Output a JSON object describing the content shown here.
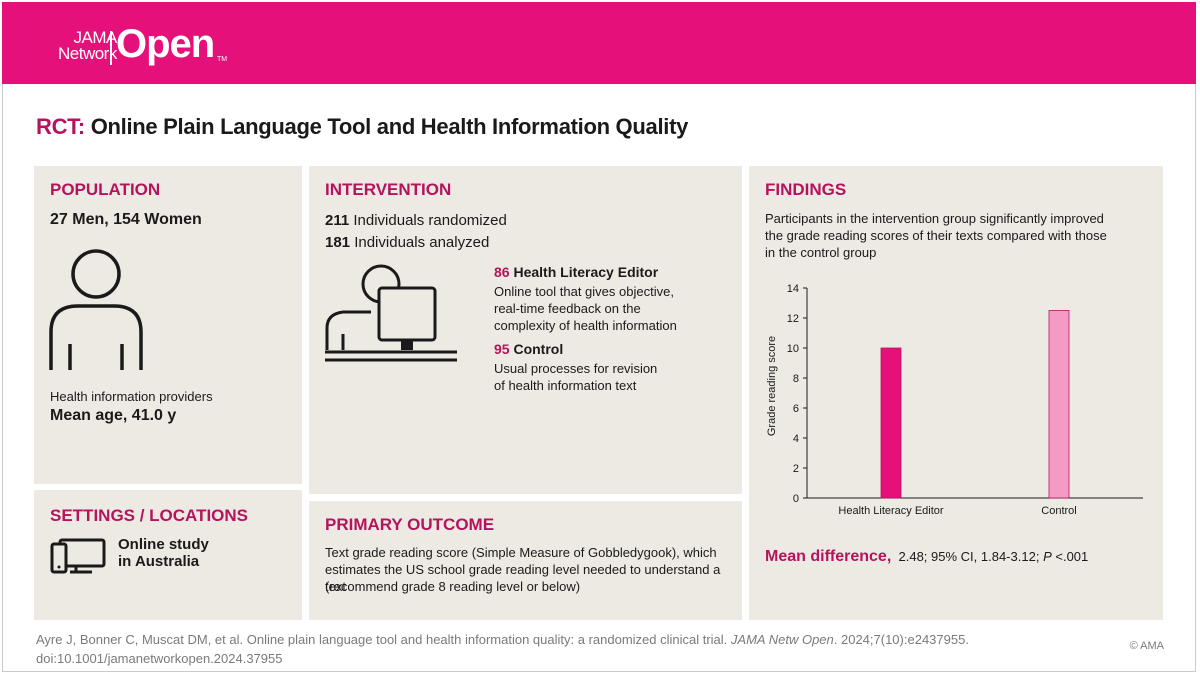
{
  "brand": {
    "line1": "JAMA",
    "line2": "Network",
    "open": "Open",
    "tm": "TM",
    "color": "#e5107a"
  },
  "title": {
    "prefix": "RCT:",
    "text": "Online Plain Language Tool and Health Information Quality"
  },
  "population": {
    "heading": "POPULATION",
    "counts": "27 Men, 154 Women",
    "icon": "person-icon",
    "descriptor": "Health information providers",
    "mean_age": "Mean age, 41.0 y"
  },
  "settings": {
    "heading": "SETTINGS / LOCATIONS",
    "icon": "devices-icon",
    "line1": "Online study",
    "line2": "in Australia"
  },
  "intervention": {
    "heading": "INTERVENTION",
    "randomized_n": "211",
    "randomized_label": "Individuals randomized",
    "analyzed_n": "181",
    "analyzed_label": "Individuals analyzed",
    "icon": "computer-user-icon",
    "arm1_n": "86",
    "arm1_name": "Health Literacy Editor",
    "arm1_desc": [
      "Online tool that gives objective,",
      "real-time feedback on the",
      "complexity of health information"
    ],
    "arm2_n": "95",
    "arm2_name": "Control",
    "arm2_desc": [
      "Usual processes for revision",
      "of health information text"
    ]
  },
  "primary_outcome": {
    "heading": "PRIMARY OUTCOME",
    "lines": [
      "Text grade reading score (Simple Measure of Gobbledygook), which",
      "estimates the US school grade reading level needed to understand a text",
      "(recommend grade 8 reading level or below)"
    ]
  },
  "findings": {
    "heading": "FINDINGS",
    "lines": [
      "Participants in the intervention group significantly improved",
      "the grade reading scores of their texts compared with those",
      "in the control group"
    ],
    "mean_diff_label": "Mean difference,",
    "mean_diff_value": "2.48; 95% CI, 1.84-3.12;",
    "p_label": "P",
    "p_value": "<.001"
  },
  "chart_data": {
    "type": "bar",
    "categories": [
      "Health Literacy Editor",
      "Control"
    ],
    "values": [
      10.0,
      12.5
    ],
    "colors": [
      "#e5107a",
      "#f49ac4"
    ],
    "ylabel": "Grade reading score",
    "xlabel": "",
    "ylim": [
      0,
      14
    ],
    "yticks": [
      0,
      2,
      4,
      6,
      8,
      10,
      12,
      14
    ],
    "grid": false
  },
  "footer": {
    "citation_a": "Ayre J, Bonner C, Muscat DM, et al. Online plain language tool and health information quality: a randomized clinical trial.",
    "journal": "JAMA Netw Open",
    "citation_b": ". 2024;7(10):e2437955.",
    "doi": "doi:10.1001/jamanetworkopen.2024.37955",
    "copyright": "© AMA"
  }
}
